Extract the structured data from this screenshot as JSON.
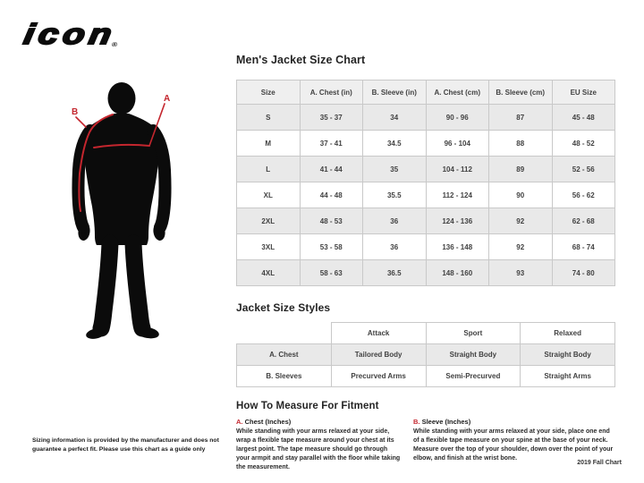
{
  "brand": {
    "logo_text": "icon",
    "registered_mark": "®"
  },
  "figure": {
    "label_a": "A",
    "label_b": "B",
    "accent_color": "#c4262e",
    "silhouette_color": "#0b0b0b"
  },
  "size_chart": {
    "title": "Men's Jacket Size Chart",
    "columns": [
      "Size",
      "A. Chest (in)",
      "B. Sleeve (in)",
      "A. Chest (cm)",
      "B. Sleeve (cm)",
      "EU Size"
    ],
    "rows": [
      [
        "S",
        "35 - 37",
        "34",
        "90 - 96",
        "87",
        "45 - 48"
      ],
      [
        "M",
        "37 - 41",
        "34.5",
        "96 - 104",
        "88",
        "48 - 52"
      ],
      [
        "L",
        "41 - 44",
        "35",
        "104 - 112",
        "89",
        "52 - 56"
      ],
      [
        "XL",
        "44 - 48",
        "35.5",
        "112 - 124",
        "90",
        "56 - 62"
      ],
      [
        "2XL",
        "48 - 53",
        "36",
        "124 - 136",
        "92",
        "62 - 68"
      ],
      [
        "3XL",
        "53 - 58",
        "36",
        "136 - 148",
        "92",
        "68 - 74"
      ],
      [
        "4XL",
        "58 - 63",
        "36.5",
        "148 - 160",
        "93",
        "74 - 80"
      ]
    ]
  },
  "style_chart": {
    "title": "Jacket Size Styles",
    "columns": [
      "",
      "Attack",
      "Sport",
      "Relaxed"
    ],
    "rows": [
      [
        "A. Chest",
        "Tailored Body",
        "Straight Body",
        "Straight Body"
      ],
      [
        "B. Sleeves",
        "Precurved Arms",
        "Semi-Precurved",
        "Straight Arms"
      ]
    ]
  },
  "measure": {
    "title": "How To Measure For Fitment",
    "sections": [
      {
        "label_prefix": "A.",
        "label": "Chest (Inches)",
        "text": "While standing with your arms relaxed at your side, wrap a flexible tape measure around your chest at its largest point. The tape measure should go through your armpit and stay parallel with the floor while taking the measurement."
      },
      {
        "label_prefix": "B.",
        "label": "Sleeve (Inches)",
        "text": "While standing with your arms relaxed at your side, place one end of a flexible tape measure on your spine at the base of your neck. Measure over the top of your shoulder, down over the point of your elbow, and finish at the wrist bone."
      }
    ]
  },
  "footer": {
    "disclaimer": "Sizing information is provided by the manufacturer and does not guarantee a perfect fit. Please use this chart as a guide only",
    "chart_version": "2019 Fall Chart"
  }
}
